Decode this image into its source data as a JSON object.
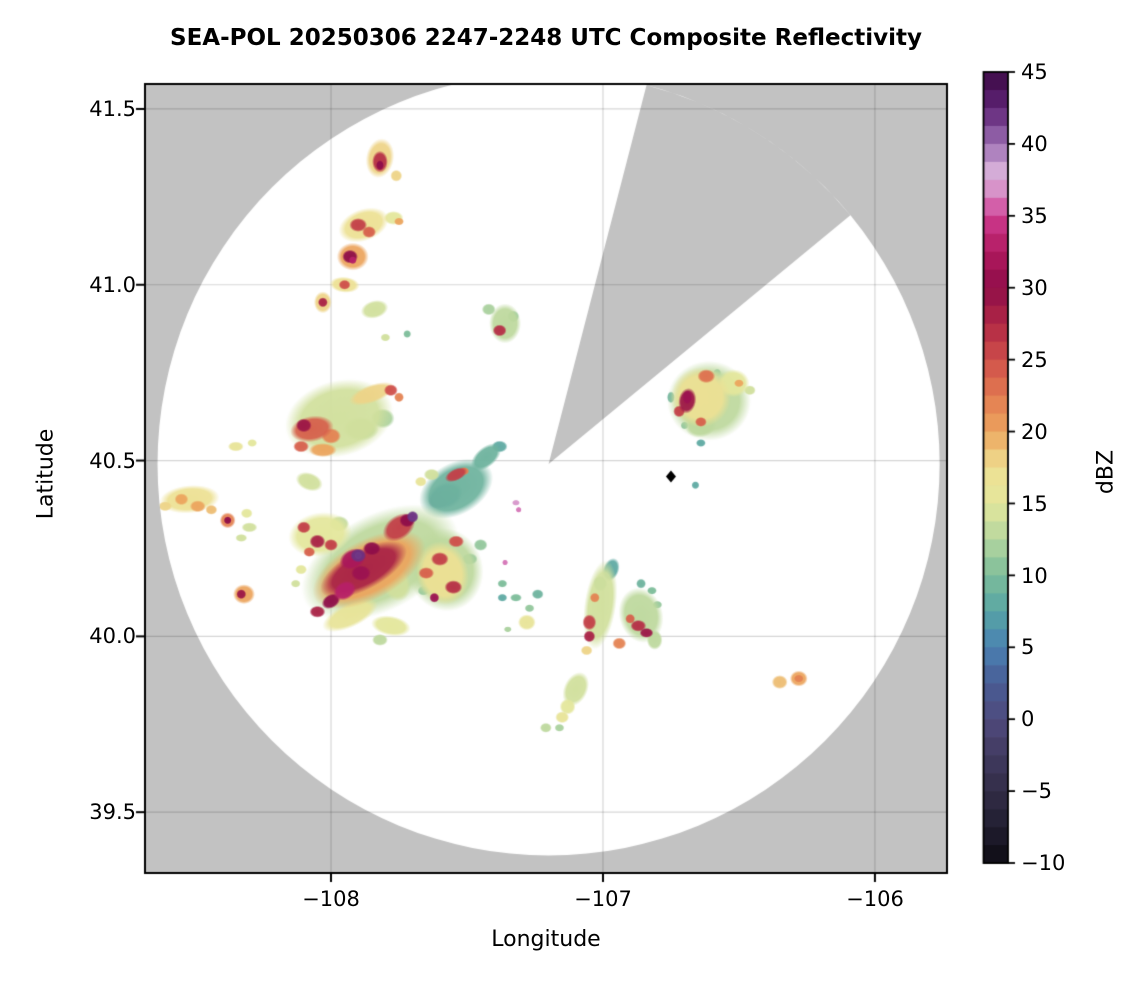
{
  "figure": {
    "title": "SEA-POL 20250306 2247-2248 UTC Composite Reflectivity"
  },
  "axes": {
    "xlabel": "Longitude",
    "ylabel": "Latitude",
    "x_tick_labels": [
      "−108",
      "−107",
      "−106"
    ],
    "y_tick_labels": [
      "41.5",
      "41.0",
      "40.5",
      "40.0",
      "39.5"
    ]
  },
  "colorbar": {
    "label": "dBZ",
    "tick_labels": [
      "45",
      "40",
      "35",
      "30",
      "25",
      "20",
      "15",
      "10",
      "5",
      "0",
      "−5",
      "−10"
    ],
    "tick_values": [
      45,
      40,
      35,
      30,
      25,
      20,
      15,
      10,
      5,
      0,
      -5,
      -10
    ],
    "min": -10,
    "max": 45,
    "segment_dbz": 1.25,
    "stops": [
      [
        -10,
        "#0d0b12"
      ],
      [
        -7.5,
        "#211e30"
      ],
      [
        -5,
        "#322d47"
      ],
      [
        -2.5,
        "#413a60"
      ],
      [
        0,
        "#4f4a7d"
      ],
      [
        2.5,
        "#485c95"
      ],
      [
        5,
        "#4a81b2"
      ],
      [
        7.5,
        "#57a5a5"
      ],
      [
        10,
        "#7dbd9a"
      ],
      [
        12.5,
        "#b5d69f"
      ],
      [
        15,
        "#e4e79c"
      ],
      [
        17.5,
        "#efe092"
      ],
      [
        20,
        "#eca55e"
      ],
      [
        22.5,
        "#e27a50"
      ],
      [
        25,
        "#cf4f4a"
      ],
      [
        27.5,
        "#b02745"
      ],
      [
        30,
        "#8e0d49"
      ],
      [
        32.5,
        "#b1195e"
      ],
      [
        35,
        "#ce3b91"
      ],
      [
        36.25,
        "#d783c0"
      ],
      [
        38,
        "#d8b0d9"
      ],
      [
        40,
        "#9d6fb3"
      ],
      [
        42.5,
        "#5e2376"
      ],
      [
        45,
        "#3c0a45"
      ]
    ]
  },
  "colors": {
    "outside_coverage": "#c2c2c2",
    "coverage": "#ffffff",
    "grid": "rgba(0,0,0,0.16)",
    "spine": "#000000",
    "marker": "#000000"
  },
  "chart_data": {
    "type": "heatmap",
    "description": "Ground radar composite reflectivity PPI on a longitude/latitude map; white disk is radar coverage, gray is outside coverage including a blocked azimuth sector; colored cells are reflectivity echoes in dBZ.",
    "x_axis": {
      "label": "Longitude",
      "ticks": [
        -108,
        -107,
        -106
      ],
      "range": [
        -108.684,
        -105.735
      ]
    },
    "y_axis": {
      "label": "Latitude",
      "ticks": [
        41.5,
        41.0,
        40.5,
        40.0,
        39.5
      ],
      "range": [
        39.327,
        41.571
      ]
    },
    "grid": true,
    "radar": {
      "center_lon": -107.2,
      "center_lat": 40.49,
      "range_lon_deg": 1.438,
      "range_lat_deg": 1.113,
      "blocked_sector_azimuth_deg": [
        14.5,
        54
      ]
    },
    "site_marker": {
      "lon": -106.75,
      "lat": 40.455,
      "shape": "diamond"
    },
    "echo_columns": [
      "lon",
      "lat",
      "rx_px",
      "ry_px",
      "rot_deg",
      "dbz"
    ],
    "echoes": [
      [
        -107.82,
        41.36,
        14,
        20,
        10,
        18
      ],
      [
        -107.82,
        41.35,
        8,
        11,
        0,
        27
      ],
      [
        -107.82,
        41.34,
        4,
        5,
        0,
        30
      ],
      [
        -107.76,
        41.31,
        6,
        6,
        0,
        18
      ],
      [
        -107.88,
        41.17,
        26,
        16,
        -20,
        17
      ],
      [
        -107.9,
        41.17,
        9,
        7,
        0,
        26
      ],
      [
        -107.86,
        41.15,
        7,
        6,
        0,
        24
      ],
      [
        -107.77,
        41.19,
        10,
        7,
        0,
        15
      ],
      [
        -107.75,
        41.18,
        5,
        4,
        0,
        20
      ],
      [
        -107.92,
        41.08,
        16,
        14,
        0,
        20
      ],
      [
        -107.93,
        41.08,
        8,
        7,
        0,
        30
      ],
      [
        -107.92,
        41.07,
        4,
        4,
        0,
        33
      ],
      [
        -107.95,
        41.0,
        15,
        8,
        5,
        17
      ],
      [
        -107.95,
        41.0,
        6,
        5,
        0,
        25
      ],
      [
        -108.03,
        40.95,
        9,
        11,
        0,
        18
      ],
      [
        -108.03,
        40.95,
        5,
        5,
        0,
        28
      ],
      [
        -107.84,
        40.93,
        14,
        9,
        -15,
        14
      ],
      [
        -107.36,
        40.89,
        16,
        20,
        0,
        13
      ],
      [
        -107.38,
        40.87,
        7,
        6,
        0,
        27
      ],
      [
        -107.33,
        40.91,
        6,
        6,
        0,
        11
      ],
      [
        -107.42,
        40.93,
        7,
        6,
        0,
        12
      ],
      [
        -107.72,
        40.86,
        4,
        4,
        0,
        10
      ],
      [
        -107.8,
        40.85,
        5,
        4,
        0,
        14
      ],
      [
        -107.97,
        40.62,
        55,
        38,
        -15,
        14
      ],
      [
        -108.07,
        40.59,
        22,
        13,
        -10,
        24
      ],
      [
        -108.1,
        40.6,
        8,
        7,
        0,
        29
      ],
      [
        -108.0,
        40.57,
        10,
        8,
        0,
        22
      ],
      [
        -107.85,
        40.69,
        24,
        9,
        -20,
        18
      ],
      [
        -107.78,
        40.7,
        7,
        6,
        0,
        25
      ],
      [
        -107.75,
        40.68,
        5,
        5,
        0,
        22
      ],
      [
        -107.89,
        40.59,
        18,
        12,
        0,
        13
      ],
      [
        -107.81,
        40.62,
        12,
        10,
        0,
        12
      ],
      [
        -108.03,
        40.53,
        14,
        7,
        0,
        20
      ],
      [
        -108.11,
        40.54,
        8,
        6,
        0,
        24
      ],
      [
        -108.35,
        40.54,
        8,
        5,
        0,
        16
      ],
      [
        -108.29,
        40.55,
        5,
        4,
        0,
        15
      ],
      [
        -108.52,
        40.39,
        30,
        14,
        -5,
        17
      ],
      [
        -108.55,
        40.39,
        7,
        6,
        0,
        20
      ],
      [
        -108.49,
        40.37,
        8,
        6,
        0,
        20
      ],
      [
        -108.44,
        40.36,
        6,
        5,
        0,
        19
      ],
      [
        -108.61,
        40.37,
        7,
        5,
        0,
        18
      ],
      [
        -108.38,
        40.33,
        8,
        8,
        0,
        22
      ],
      [
        -108.38,
        40.33,
        4,
        4,
        0,
        30
      ],
      [
        -108.31,
        40.35,
        6,
        5,
        0,
        15
      ],
      [
        -108.3,
        40.31,
        8,
        5,
        0,
        14
      ],
      [
        -108.33,
        40.28,
        6,
        4,
        0,
        14
      ],
      [
        -108.32,
        40.12,
        11,
        10,
        0,
        20
      ],
      [
        -108.33,
        40.12,
        5,
        5,
        0,
        29
      ],
      [
        -108.04,
        40.29,
        32,
        22,
        -10,
        15
      ],
      [
        -108.1,
        40.31,
        7,
        6,
        0,
        26
      ],
      [
        -108.05,
        40.27,
        8,
        7,
        0,
        28
      ],
      [
        -108.0,
        40.26,
        7,
        6,
        0,
        26
      ],
      [
        -108.08,
        40.24,
        6,
        5,
        0,
        24
      ],
      [
        -107.97,
        40.32,
        10,
        8,
        0,
        13
      ],
      [
        -108.08,
        40.44,
        14,
        9,
        20,
        14
      ],
      [
        -107.82,
        40.21,
        85,
        48,
        -28,
        13
      ],
      [
        -107.86,
        40.19,
        62,
        30,
        -28,
        20
      ],
      [
        -107.88,
        40.19,
        48,
        20,
        -28,
        28
      ],
      [
        -107.92,
        40.22,
        14,
        10,
        -25,
        32
      ],
      [
        -107.95,
        40.13,
        12,
        9,
        -30,
        33
      ],
      [
        -107.89,
        40.18,
        10,
        8,
        0,
        31
      ],
      [
        -107.85,
        40.25,
        9,
        7,
        0,
        30
      ],
      [
        -108.0,
        40.1,
        10,
        7,
        -30,
        30
      ],
      [
        -108.05,
        40.07,
        8,
        6,
        0,
        28
      ],
      [
        -107.9,
        40.23,
        8,
        7,
        0,
        42
      ],
      [
        -107.9,
        40.23,
        4,
        4,
        0,
        38
      ],
      [
        -107.75,
        40.31,
        18,
        12,
        -35,
        26
      ],
      [
        -107.72,
        40.33,
        8,
        7,
        0,
        30
      ],
      [
        -107.7,
        40.34,
        6,
        6,
        0,
        42
      ],
      [
        -107.7,
        40.34,
        4,
        4,
        0,
        38
      ],
      [
        -107.93,
        40.06,
        30,
        12,
        -25,
        16
      ],
      [
        -107.78,
        40.03,
        20,
        10,
        10,
        15
      ],
      [
        -107.82,
        39.99,
        8,
        6,
        0,
        13
      ],
      [
        -107.58,
        40.19,
        38,
        42,
        -15,
        13
      ],
      [
        -107.59,
        40.18,
        26,
        32,
        -15,
        17
      ],
      [
        -107.54,
        40.27,
        8,
        6,
        0,
        25
      ],
      [
        -107.6,
        40.22,
        9,
        7,
        0,
        26
      ],
      [
        -107.65,
        40.18,
        8,
        6,
        0,
        24
      ],
      [
        -107.55,
        40.14,
        9,
        7,
        0,
        27
      ],
      [
        -107.62,
        40.11,
        5,
        5,
        0,
        31
      ],
      [
        -107.66,
        40.13,
        6,
        5,
        0,
        10
      ],
      [
        -107.49,
        40.22,
        8,
        6,
        0,
        10
      ],
      [
        -107.45,
        40.26,
        7,
        6,
        0,
        11
      ],
      [
        -107.76,
        40.15,
        14,
        18,
        -20,
        14
      ],
      [
        -107.54,
        40.42,
        40,
        26,
        -30,
        9
      ],
      [
        -107.58,
        40.4,
        18,
        13,
        -20,
        6
      ],
      [
        -107.6,
        40.39,
        12,
        9,
        -20,
        2
      ],
      [
        -107.54,
        40.46,
        12,
        6,
        -25,
        26
      ],
      [
        -107.51,
        40.47,
        5,
        4,
        0,
        22
      ],
      [
        -107.43,
        40.51,
        18,
        10,
        -40,
        9
      ],
      [
        -107.38,
        40.54,
        8,
        6,
        0,
        8
      ],
      [
        -107.32,
        40.38,
        4,
        3,
        0,
        37
      ],
      [
        -107.31,
        40.36,
        3,
        3,
        0,
        36
      ],
      [
        -107.36,
        40.21,
        3,
        3,
        0,
        36
      ],
      [
        -107.63,
        40.46,
        8,
        6,
        0,
        14
      ],
      [
        -107.67,
        40.44,
        6,
        5,
        0,
        16
      ],
      [
        -108.11,
        40.19,
        6,
        5,
        0,
        15
      ],
      [
        -108.13,
        40.15,
        5,
        4,
        0,
        14
      ],
      [
        -106.61,
        40.67,
        42,
        40,
        0,
        13
      ],
      [
        -106.64,
        40.68,
        30,
        30,
        0,
        17
      ],
      [
        -106.52,
        40.72,
        16,
        14,
        0,
        15
      ],
      [
        -106.69,
        40.67,
        9,
        13,
        10,
        29
      ],
      [
        -106.69,
        40.68,
        5,
        7,
        0,
        31
      ],
      [
        -106.72,
        40.64,
        6,
        6,
        0,
        26
      ],
      [
        -106.62,
        40.74,
        9,
        7,
        0,
        23
      ],
      [
        -106.64,
        40.61,
        6,
        5,
        0,
        24
      ],
      [
        -106.5,
        40.72,
        5,
        4,
        0,
        20
      ],
      [
        -106.46,
        40.7,
        6,
        5,
        0,
        14
      ],
      [
        -106.58,
        40.75,
        4,
        4,
        0,
        9
      ],
      [
        -106.52,
        40.7,
        4,
        4,
        0,
        9
      ],
      [
        -106.64,
        40.55,
        5,
        4,
        0,
        8
      ],
      [
        -106.7,
        40.6,
        4,
        4,
        0,
        10
      ],
      [
        -106.75,
        40.68,
        4,
        6,
        0,
        9
      ],
      [
        -106.64,
        40.6,
        16,
        12,
        -10,
        13
      ],
      [
        -106.66,
        40.43,
        4,
        4,
        0,
        8
      ],
      [
        -107.37,
        40.11,
        5,
        4,
        0,
        8
      ],
      [
        -107.32,
        40.11,
        6,
        4,
        0,
        10
      ],
      [
        -107.24,
        40.12,
        6,
        5,
        0,
        9
      ],
      [
        -107.27,
        40.08,
        5,
        4,
        0,
        11
      ],
      [
        -107.28,
        40.04,
        9,
        8,
        0,
        16
      ],
      [
        -107.35,
        40.02,
        4,
        3,
        0,
        12
      ],
      [
        -107.37,
        40.15,
        5,
        4,
        0,
        10
      ],
      [
        -107.01,
        40.09,
        16,
        45,
        8,
        14
      ],
      [
        -106.97,
        40.19,
        8,
        12,
        20,
        8
      ],
      [
        -107.01,
        40.15,
        7,
        8,
        0,
        10
      ],
      [
        -107.05,
        40.04,
        7,
        8,
        0,
        26
      ],
      [
        -107.05,
        40.0,
        6,
        6,
        0,
        28
      ],
      [
        -107.03,
        40.11,
        5,
        5,
        0,
        22
      ],
      [
        -107.06,
        39.96,
        6,
        5,
        0,
        18
      ],
      [
        -106.94,
        39.98,
        7,
        6,
        0,
        22
      ],
      [
        -106.86,
        40.06,
        22,
        28,
        -15,
        13
      ],
      [
        -106.87,
        40.03,
        8,
        6,
        0,
        27
      ],
      [
        -106.84,
        40.01,
        7,
        5,
        0,
        29
      ],
      [
        -106.9,
        40.05,
        5,
        5,
        0,
        24
      ],
      [
        -106.86,
        40.15,
        5,
        5,
        0,
        9
      ],
      [
        -106.82,
        40.13,
        5,
        4,
        0,
        10
      ],
      [
        -106.8,
        40.09,
        5,
        4,
        0,
        11
      ],
      [
        -106.81,
        39.99,
        8,
        10,
        0,
        13
      ],
      [
        -107.1,
        39.85,
        12,
        18,
        25,
        14
      ],
      [
        -107.13,
        39.8,
        8,
        8,
        0,
        15
      ],
      [
        -107.15,
        39.77,
        7,
        6,
        0,
        16
      ],
      [
        -107.21,
        39.74,
        6,
        5,
        0,
        13
      ],
      [
        -107.16,
        39.74,
        5,
        4,
        0,
        12
      ],
      [
        -106.35,
        39.87,
        8,
        7,
        0,
        19
      ],
      [
        -106.28,
        39.88,
        9,
        8,
        0,
        20
      ],
      [
        -106.28,
        39.88,
        5,
        4,
        0,
        22
      ]
    ]
  }
}
